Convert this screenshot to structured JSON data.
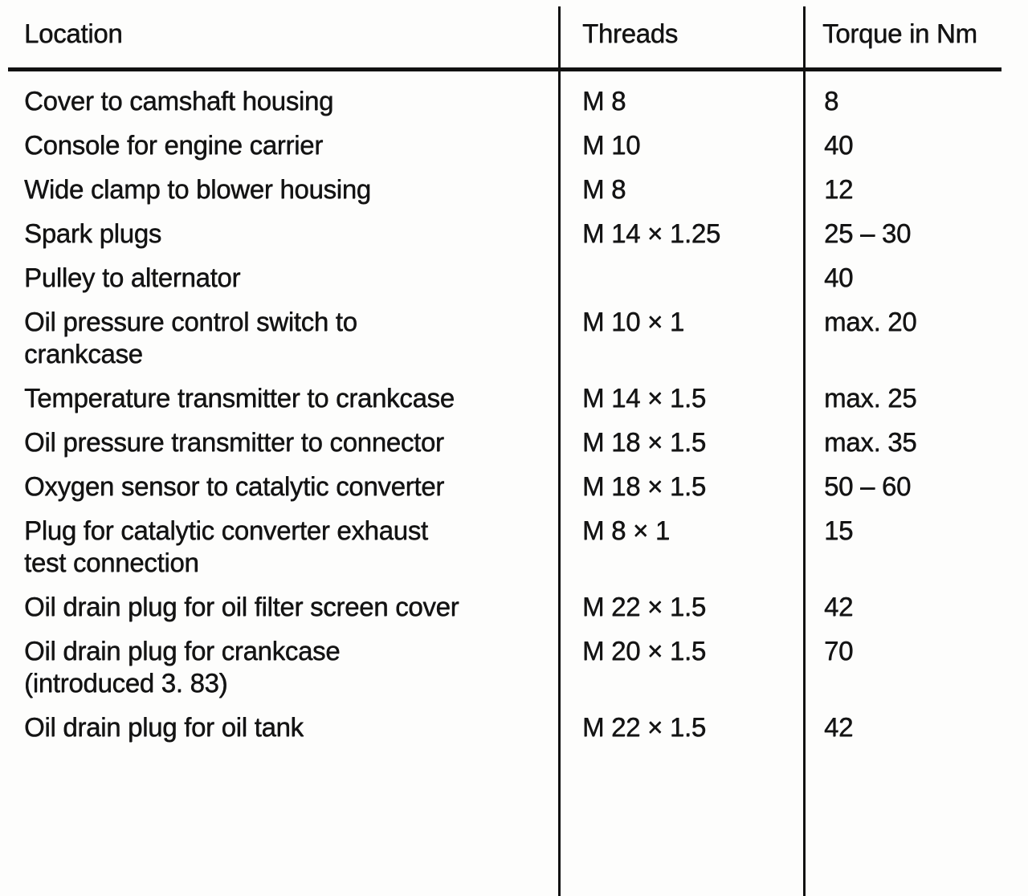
{
  "document": {
    "kind": "torque-specification-table",
    "text_color": "#141414",
    "paper_color": "#fdfdfc",
    "rule_color": "#111111"
  },
  "table": {
    "columns": [
      {
        "label": "Location"
      },
      {
        "label": "Threads"
      },
      {
        "label": "Torque in Nm"
      }
    ],
    "rows": [
      {
        "location": "Cover to camshaft housing",
        "threads": "M 8",
        "torque": "8"
      },
      {
        "location": "Console for engine carrier",
        "threads": "M 10",
        "torque": "40"
      },
      {
        "location": "Wide clamp to blower housing",
        "threads": "M 8",
        "torque": "12"
      },
      {
        "location": "Spark plugs",
        "threads": "M 14 × 1.25",
        "torque": "25 – 30"
      },
      {
        "location": "Pulley to alternator",
        "threads": "",
        "torque": "40"
      },
      {
        "location": "Oil pressure control switch to crankcase",
        "threads": "M 10 × 1",
        "torque": "max. 20"
      },
      {
        "location": "Temperature transmitter to crankcase",
        "threads": "M 14 × 1.5",
        "torque": "max. 25"
      },
      {
        "location": "Oil pressure transmitter to connector",
        "threads": "M 18 × 1.5",
        "torque": "max. 35"
      },
      {
        "location": "Oxygen sensor to catalytic converter",
        "threads": "M 18 × 1.5",
        "torque": "50 – 60"
      },
      {
        "location": "Plug for catalytic converter exhaust test connection",
        "threads": "M 8 × 1",
        "torque": "15"
      },
      {
        "location": "Oil drain plug for oil filter screen cover",
        "threads": "M 22 × 1.5",
        "torque": "42"
      },
      {
        "location": "Oil drain plug for crankcase (introduced 3. 83)",
        "threads": "M 20 × 1.5",
        "torque": "70"
      },
      {
        "location": "Oil drain plug for oil tank",
        "threads": "M 22 × 1.5",
        "torque": "42"
      }
    ]
  }
}
